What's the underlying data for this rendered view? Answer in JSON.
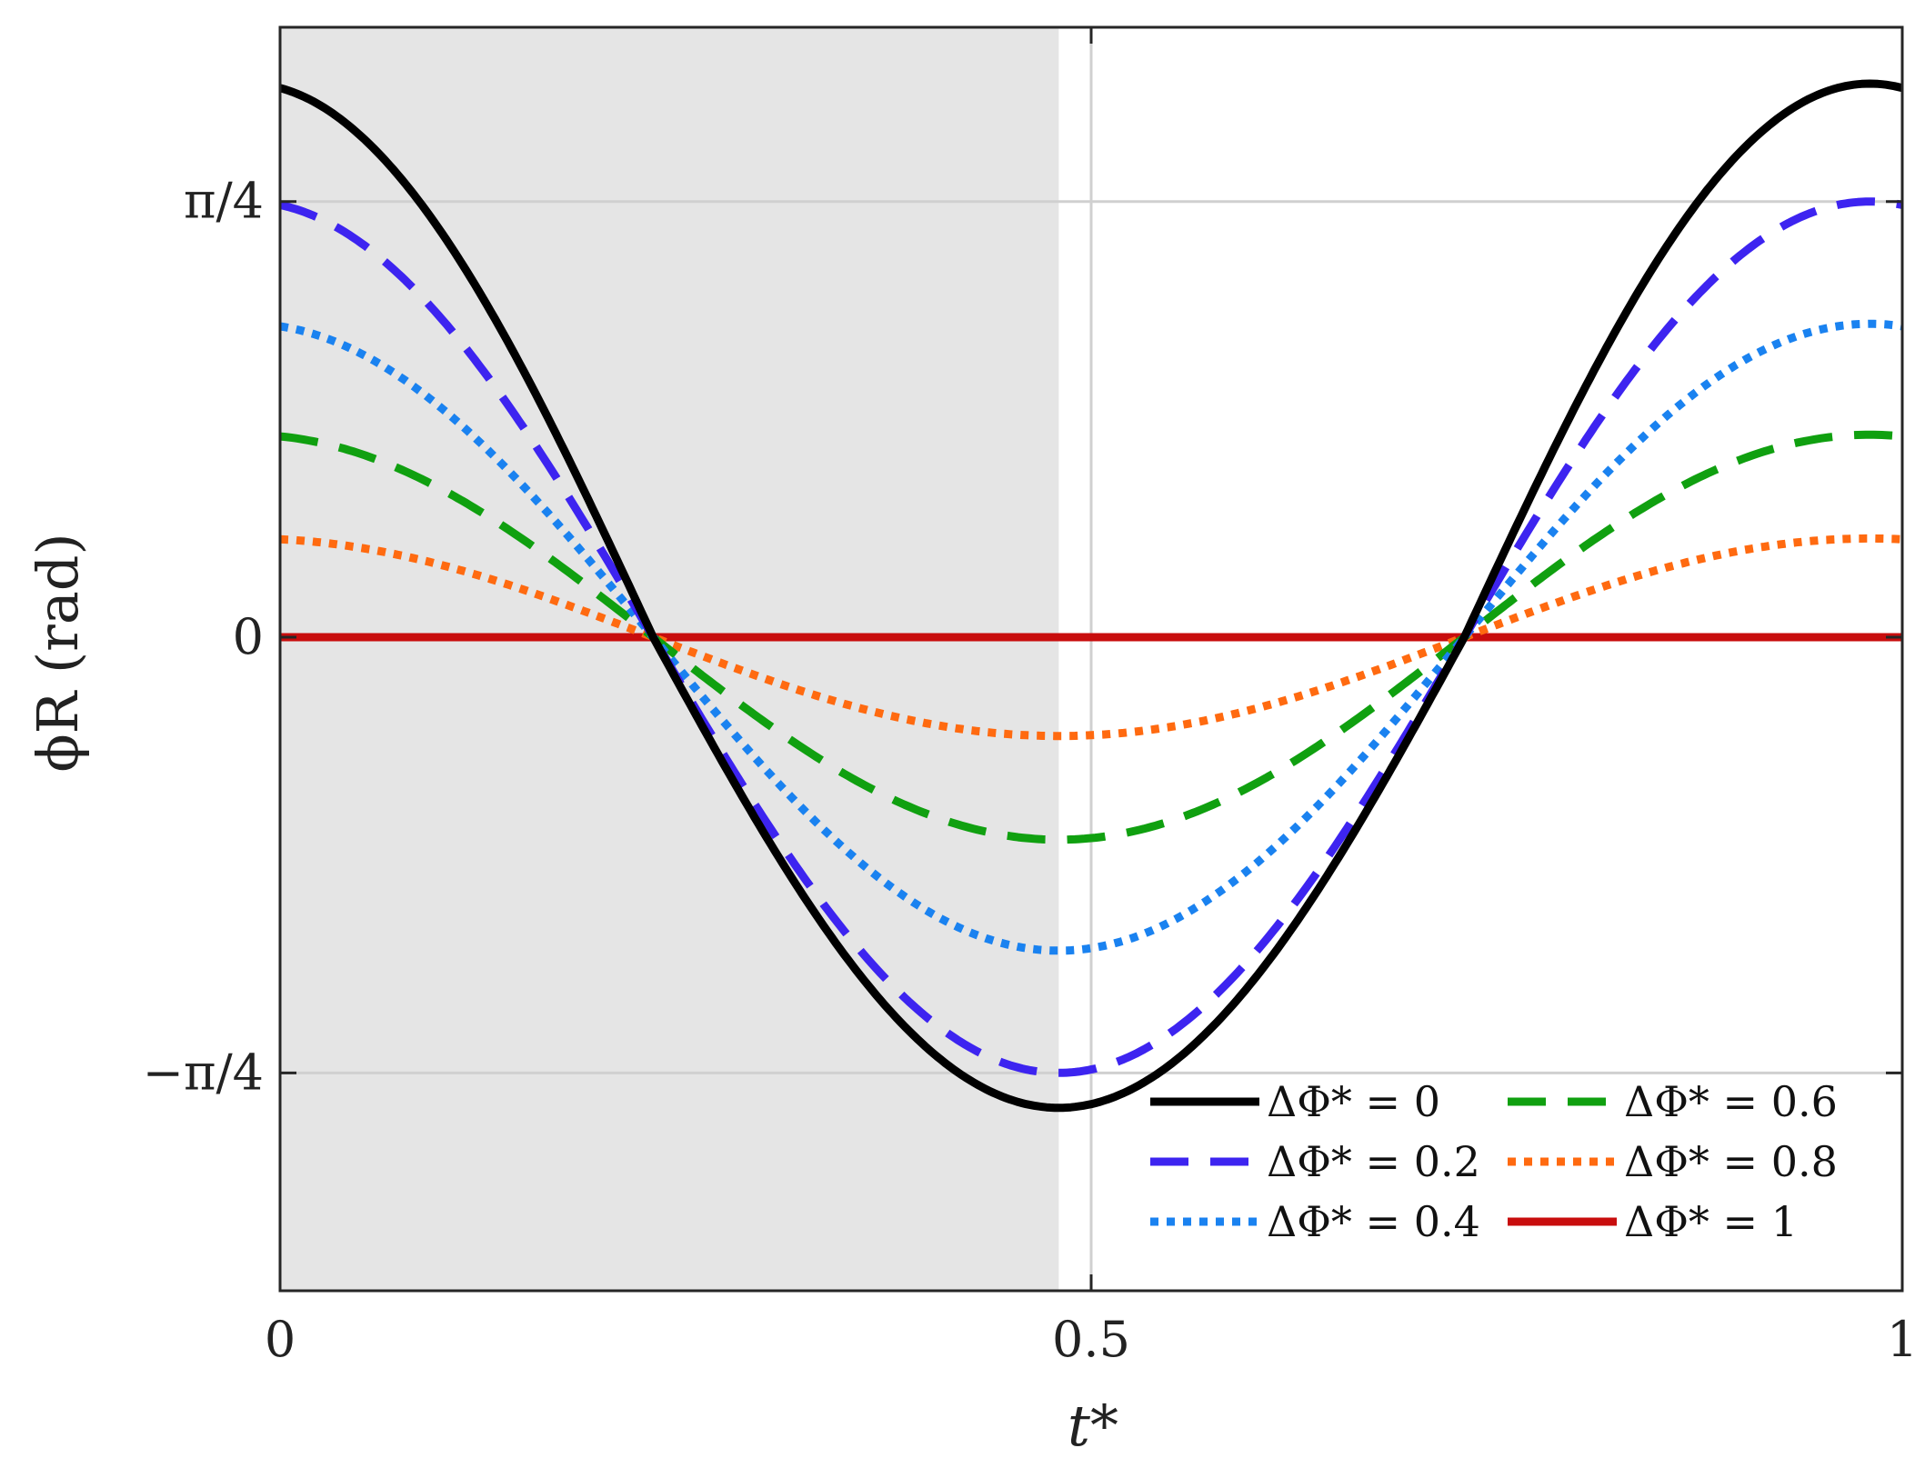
{
  "chart_data": {
    "type": "line",
    "title": "",
    "xlabel": "t*",
    "ylabel": "ϕR (rad)",
    "xlim": [
      0,
      1
    ],
    "ylim": [
      -1.1781,
      1.0996
    ],
    "x_ticks": [
      {
        "value": 0,
        "label": "0"
      },
      {
        "value": 0.5,
        "label": "0.5"
      },
      {
        "value": 1,
        "label": "1"
      }
    ],
    "y_ticks": [
      {
        "value": -0.7854,
        "label": "−π/4"
      },
      {
        "value": 0,
        "label": "0"
      },
      {
        "value": 0.7854,
        "label": "π/4"
      }
    ],
    "grid": true,
    "legend_position": "bottom-right",
    "legend_columns": 2,
    "shaded_region": {
      "x_start": 0,
      "x_end": 0.48,
      "color": "#e5e5e5"
    },
    "curve_model": "phi = A * cos(2*pi*t) shifted so min at t=0.48",
    "series": [
      {
        "name": "ΔΦ* = 0",
        "amplitude": 1.0,
        "color": "#000000",
        "style": "solid"
      },
      {
        "name": "ΔΦ* = 0.2",
        "amplitude": 0.7854,
        "color": "#3d24f0",
        "style": "dashed"
      },
      {
        "name": "ΔΦ* = 0.4",
        "amplitude": 0.565,
        "color": "#1a82f0",
        "style": "dotted"
      },
      {
        "name": "ΔΦ* = 0.6",
        "amplitude": 0.365,
        "color": "#10a010",
        "style": "dashed"
      },
      {
        "name": "ΔΦ* = 0.8",
        "amplitude": 0.178,
        "color": "#ff6a10",
        "style": "dotted"
      },
      {
        "name": "ΔΦ* = 1",
        "amplitude": 0.0,
        "color": "#c80d0d",
        "style": "solid"
      }
    ]
  }
}
